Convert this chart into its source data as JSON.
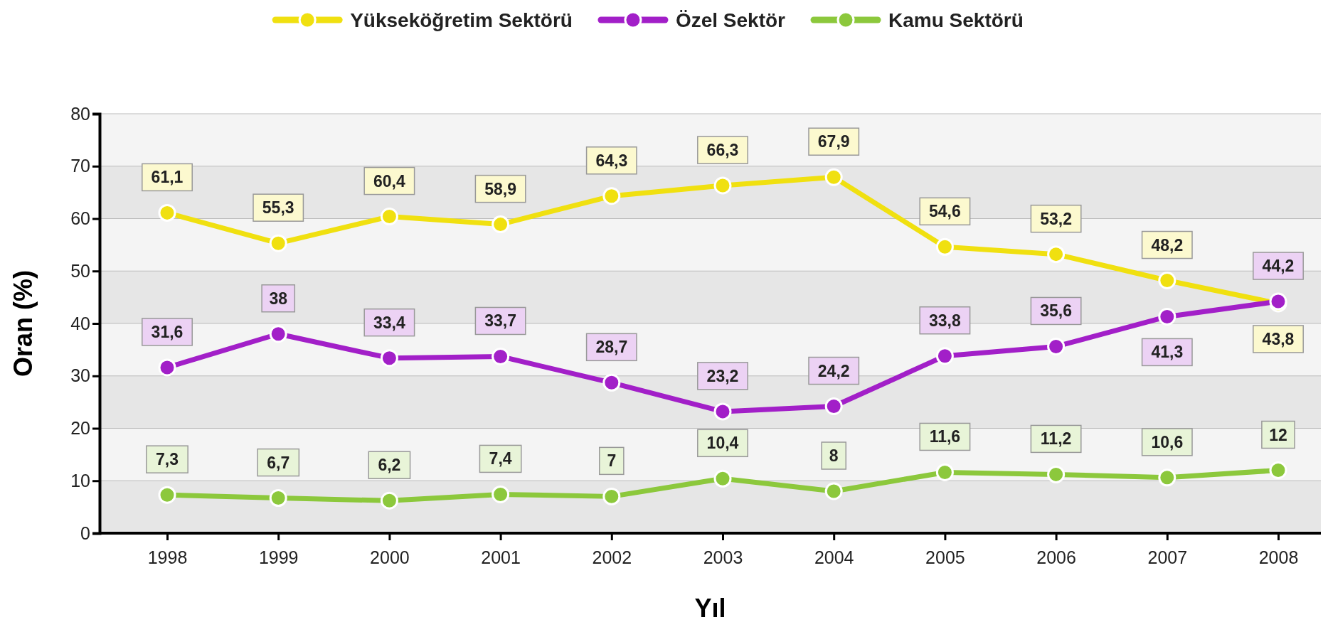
{
  "chart_data": {
    "type": "line",
    "xlabel": "Yıl",
    "ylabel": "Oran (%)",
    "categories": [
      "1998",
      "1999",
      "2000",
      "2001",
      "2002",
      "2003",
      "2004",
      "2005",
      "2006",
      "2007",
      "2008"
    ],
    "series": [
      {
        "name": "Yükseköğretim Sektörü",
        "color": "#f0e010",
        "values": [
          61.1,
          55.3,
          60.4,
          58.9,
          64.3,
          66.3,
          67.9,
          54.6,
          53.2,
          48.2,
          43.8
        ],
        "value_labels": [
          "61,1",
          "55,3",
          "60,4",
          "58,9",
          "64,3",
          "66,3",
          "67,9",
          "54,6",
          "53,2",
          "48,2",
          "43,8"
        ]
      },
      {
        "name": "Özel Sektör",
        "color": "#a21fc8",
        "values": [
          31.6,
          38,
          33.4,
          33.7,
          28.7,
          23.2,
          24.2,
          33.8,
          35.6,
          41.3,
          44.2
        ],
        "value_labels": [
          "31,6",
          "38",
          "33,4",
          "33,7",
          "28,7",
          "23,2",
          "24,2",
          "33,8",
          "35,6",
          "41,3",
          "44,2"
        ]
      },
      {
        "name": "Kamu Sektörü",
        "color": "#8cc83c",
        "values": [
          7.3,
          6.7,
          6.2,
          7.4,
          7,
          10.4,
          8,
          11.6,
          11.2,
          10.6,
          12
        ],
        "value_labels": [
          "7,3",
          "6,7",
          "6,2",
          "7,4",
          "7",
          "10,4",
          "8",
          "11,6",
          "11,2",
          "10,6",
          "12"
        ]
      }
    ],
    "ylim": [
      0,
      80
    ],
    "yticks": [
      0,
      10,
      20,
      30,
      40,
      50,
      60,
      70,
      80
    ],
    "grid": "y",
    "legend": "top",
    "marker": "circle",
    "line_style": "solid"
  }
}
